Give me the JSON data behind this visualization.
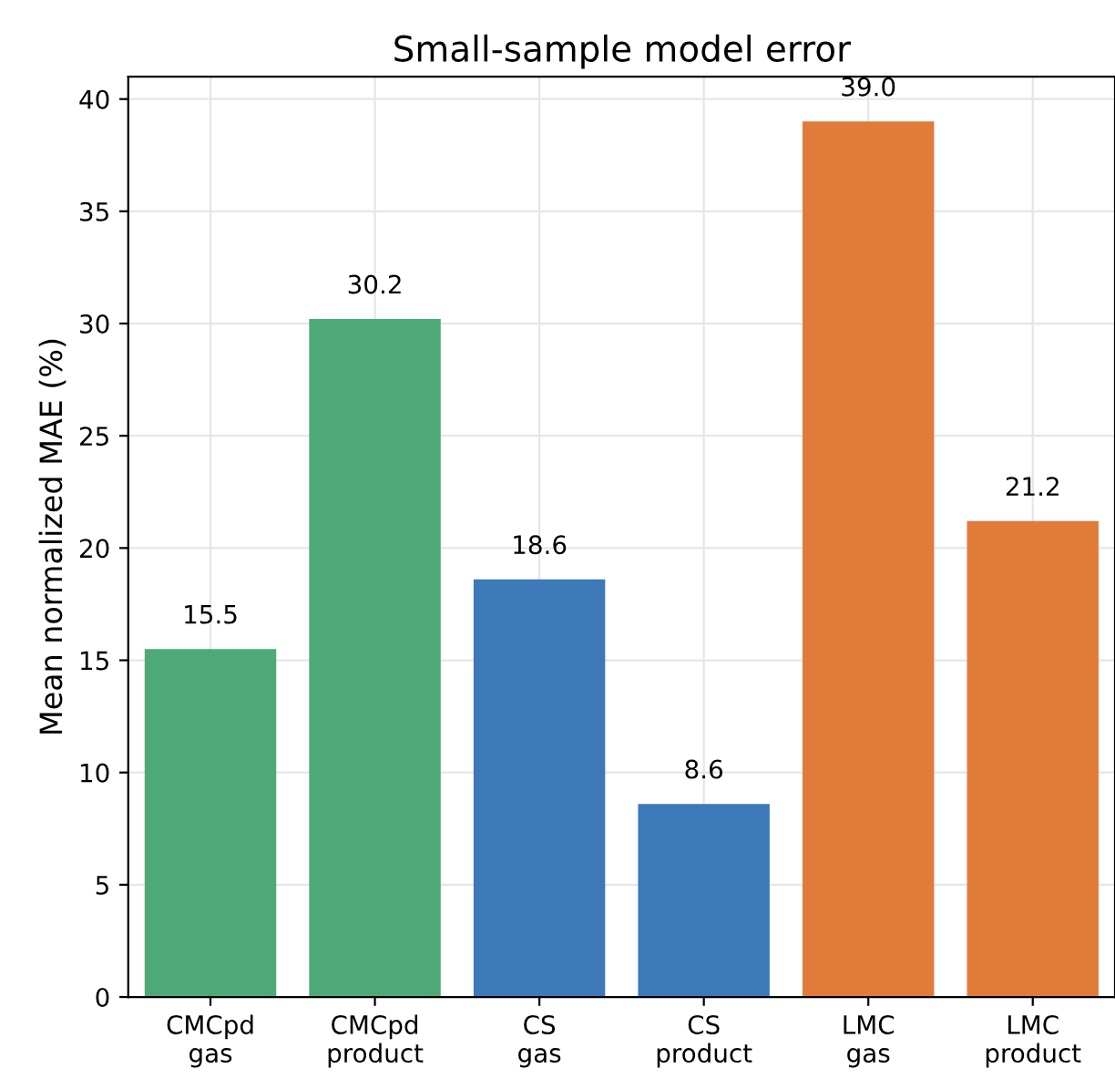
{
  "chart_data": {
    "type": "bar",
    "title": "Small-sample model error",
    "ylabel": "Mean normalized MAE (%)",
    "categories": [
      "CMCpd\ngas",
      "CMCpd\nproduct",
      "CS\ngas",
      "CS\nproduct",
      "LMC\ngas",
      "LMC\nproduct"
    ],
    "values": [
      15.5,
      30.2,
      18.6,
      8.6,
      39.0,
      21.2
    ],
    "value_labels": [
      "15.5",
      "30.2",
      "18.6",
      "8.6",
      "39.0",
      "21.2"
    ],
    "colors": [
      "#4daa78",
      "#4daa78",
      "#3d78b8",
      "#3d78b8",
      "#e07b39",
      "#e07b39"
    ],
    "ylim": [
      0,
      41
    ],
    "yticks": [
      0,
      5,
      10,
      15,
      20,
      25,
      30,
      35,
      40
    ],
    "grid": true
  }
}
